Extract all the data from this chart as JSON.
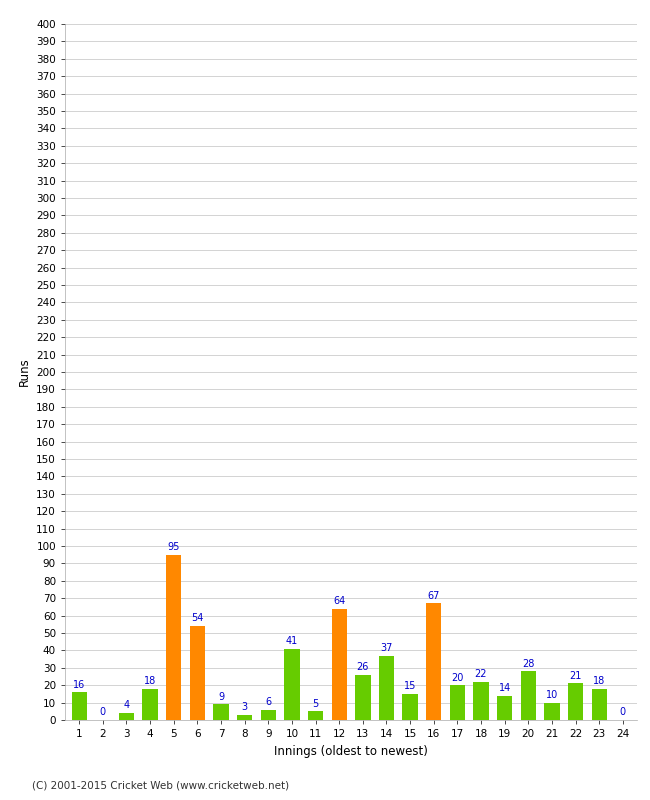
{
  "innings": [
    1,
    2,
    3,
    4,
    5,
    6,
    7,
    8,
    9,
    10,
    11,
    12,
    13,
    14,
    15,
    16,
    17,
    18,
    19,
    20,
    21,
    22,
    23,
    24
  ],
  "values": [
    16,
    0,
    4,
    18,
    95,
    54,
    9,
    3,
    6,
    41,
    5,
    64,
    26,
    37,
    15,
    67,
    20,
    22,
    14,
    28,
    10,
    21,
    18,
    0
  ],
  "bar_colors": [
    "#66cc00",
    "#66cc00",
    "#66cc00",
    "#66cc00",
    "#ff8800",
    "#ff8800",
    "#66cc00",
    "#66cc00",
    "#66cc00",
    "#66cc00",
    "#66cc00",
    "#ff8800",
    "#66cc00",
    "#66cc00",
    "#66cc00",
    "#ff8800",
    "#66cc00",
    "#66cc00",
    "#66cc00",
    "#66cc00",
    "#66cc00",
    "#66cc00",
    "#66cc00",
    "#66cc00"
  ],
  "xlabel": "Innings (oldest to newest)",
  "ylabel": "Runs",
  "ylim": [
    0,
    400
  ],
  "yticks": [
    0,
    10,
    20,
    30,
    40,
    50,
    60,
    70,
    80,
    90,
    100,
    110,
    120,
    130,
    140,
    150,
    160,
    170,
    180,
    190,
    200,
    210,
    220,
    230,
    240,
    250,
    260,
    270,
    280,
    290,
    300,
    310,
    320,
    330,
    340,
    350,
    360,
    370,
    380,
    390,
    400
  ],
  "value_label_color": "#0000cc",
  "background_color": "#ffffff",
  "grid_color": "#cccccc",
  "footer": "(C) 2001-2015 Cricket Web (www.cricketweb.net)"
}
